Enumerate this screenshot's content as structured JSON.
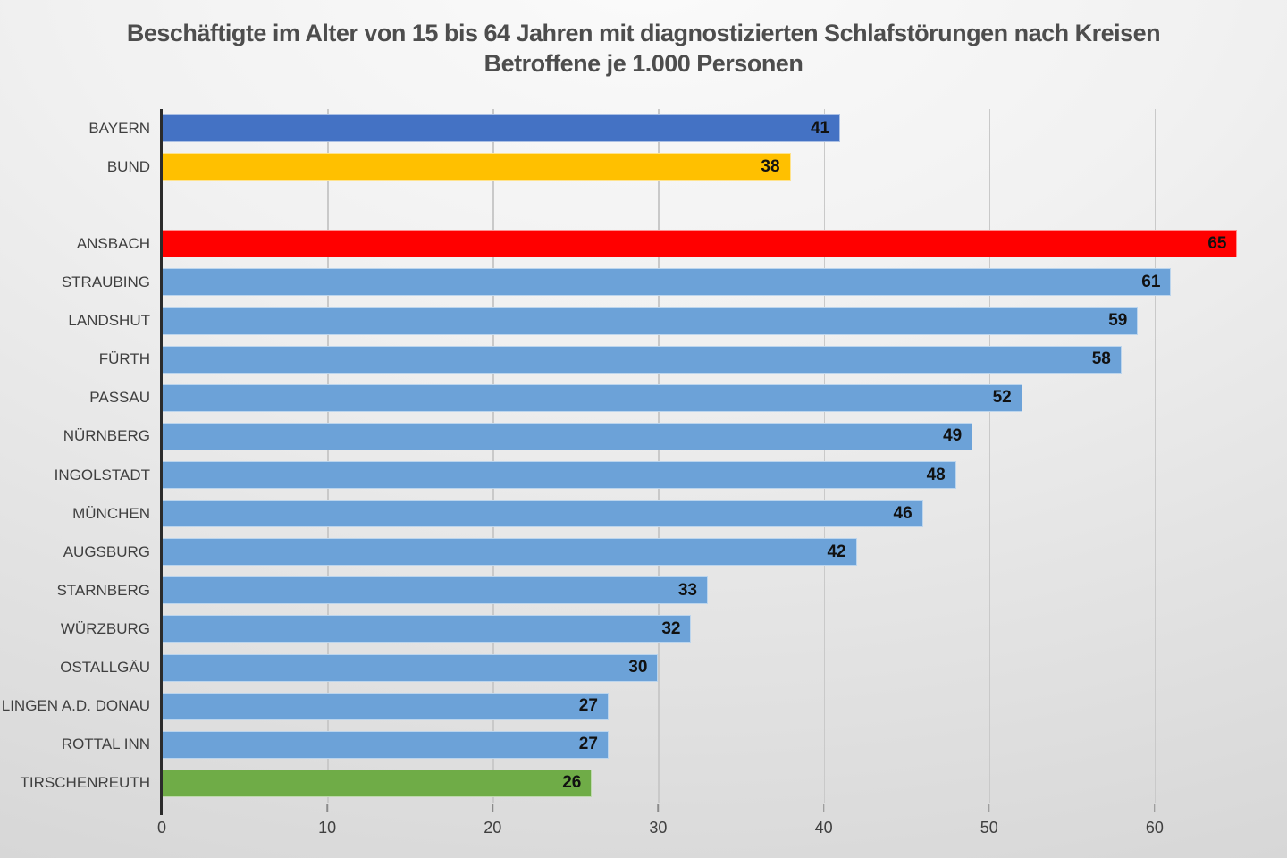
{
  "title": {
    "line1": "Beschäftigte im Alter von 15 bis 64 Jahren mit diagnostizierten Schlafstörungen nach Kreisen",
    "line2": "Betroffene je 1.000 Personen"
  },
  "chart_data": {
    "type": "bar",
    "orientation": "horizontal",
    "title": "Beschäftigte im Alter von 15 bis 64 Jahren mit diagnostizierten Schlafstörungen nach Kreisen",
    "subtitle": "Betroffene je 1.000 Personen",
    "xlabel": "",
    "ylabel": "",
    "axis": {
      "min": 0,
      "max": 68,
      "ticks": [
        0,
        10,
        20,
        30,
        40,
        50,
        60
      ],
      "grid": true
    },
    "value_labels": "inside-end",
    "legend": "none",
    "colors": {
      "default_bar": "#6CA2D8",
      "bayern": "#4472C4",
      "bund": "#FFC000",
      "highlight_max": "#FF0000",
      "highlight_min": "#6FAC47"
    },
    "rows": [
      {
        "label": "BAYERN",
        "value": 41,
        "color": "#4472C4"
      },
      {
        "label": "BUND",
        "value": 38,
        "color": "#FFC000"
      },
      {
        "label": "",
        "value": null,
        "color": null
      },
      {
        "label": "ANSBACH",
        "value": 65,
        "color": "#FF0000"
      },
      {
        "label": "STRAUBING",
        "value": 61,
        "color": "#6CA2D8"
      },
      {
        "label": "LANDSHUT",
        "value": 59,
        "color": "#6CA2D8"
      },
      {
        "label": "FÜRTH",
        "value": 58,
        "color": "#6CA2D8"
      },
      {
        "label": "PASSAU",
        "value": 52,
        "color": "#6CA2D8"
      },
      {
        "label": "NÜRNBERG",
        "value": 49,
        "color": "#6CA2D8"
      },
      {
        "label": "INGOLSTADT",
        "value": 48,
        "color": "#6CA2D8"
      },
      {
        "label": "MÜNCHEN",
        "value": 46,
        "color": "#6CA2D8"
      },
      {
        "label": "AUGSBURG",
        "value": 42,
        "color": "#6CA2D8"
      },
      {
        "label": "STARNBERG",
        "value": 33,
        "color": "#6CA2D8"
      },
      {
        "label": "WÜRZBURG",
        "value": 32,
        "color": "#6CA2D8"
      },
      {
        "label": "OSTALLGÄU",
        "value": 30,
        "color": "#6CA2D8"
      },
      {
        "label": "LINGEN A.D. DONAU",
        "value": 27,
        "color": "#6CA2D8"
      },
      {
        "label": "ROTTAL INN",
        "value": 27,
        "color": "#6CA2D8"
      },
      {
        "label": "TIRSCHENREUTH",
        "value": 26,
        "color": "#6FAC47"
      }
    ]
  }
}
